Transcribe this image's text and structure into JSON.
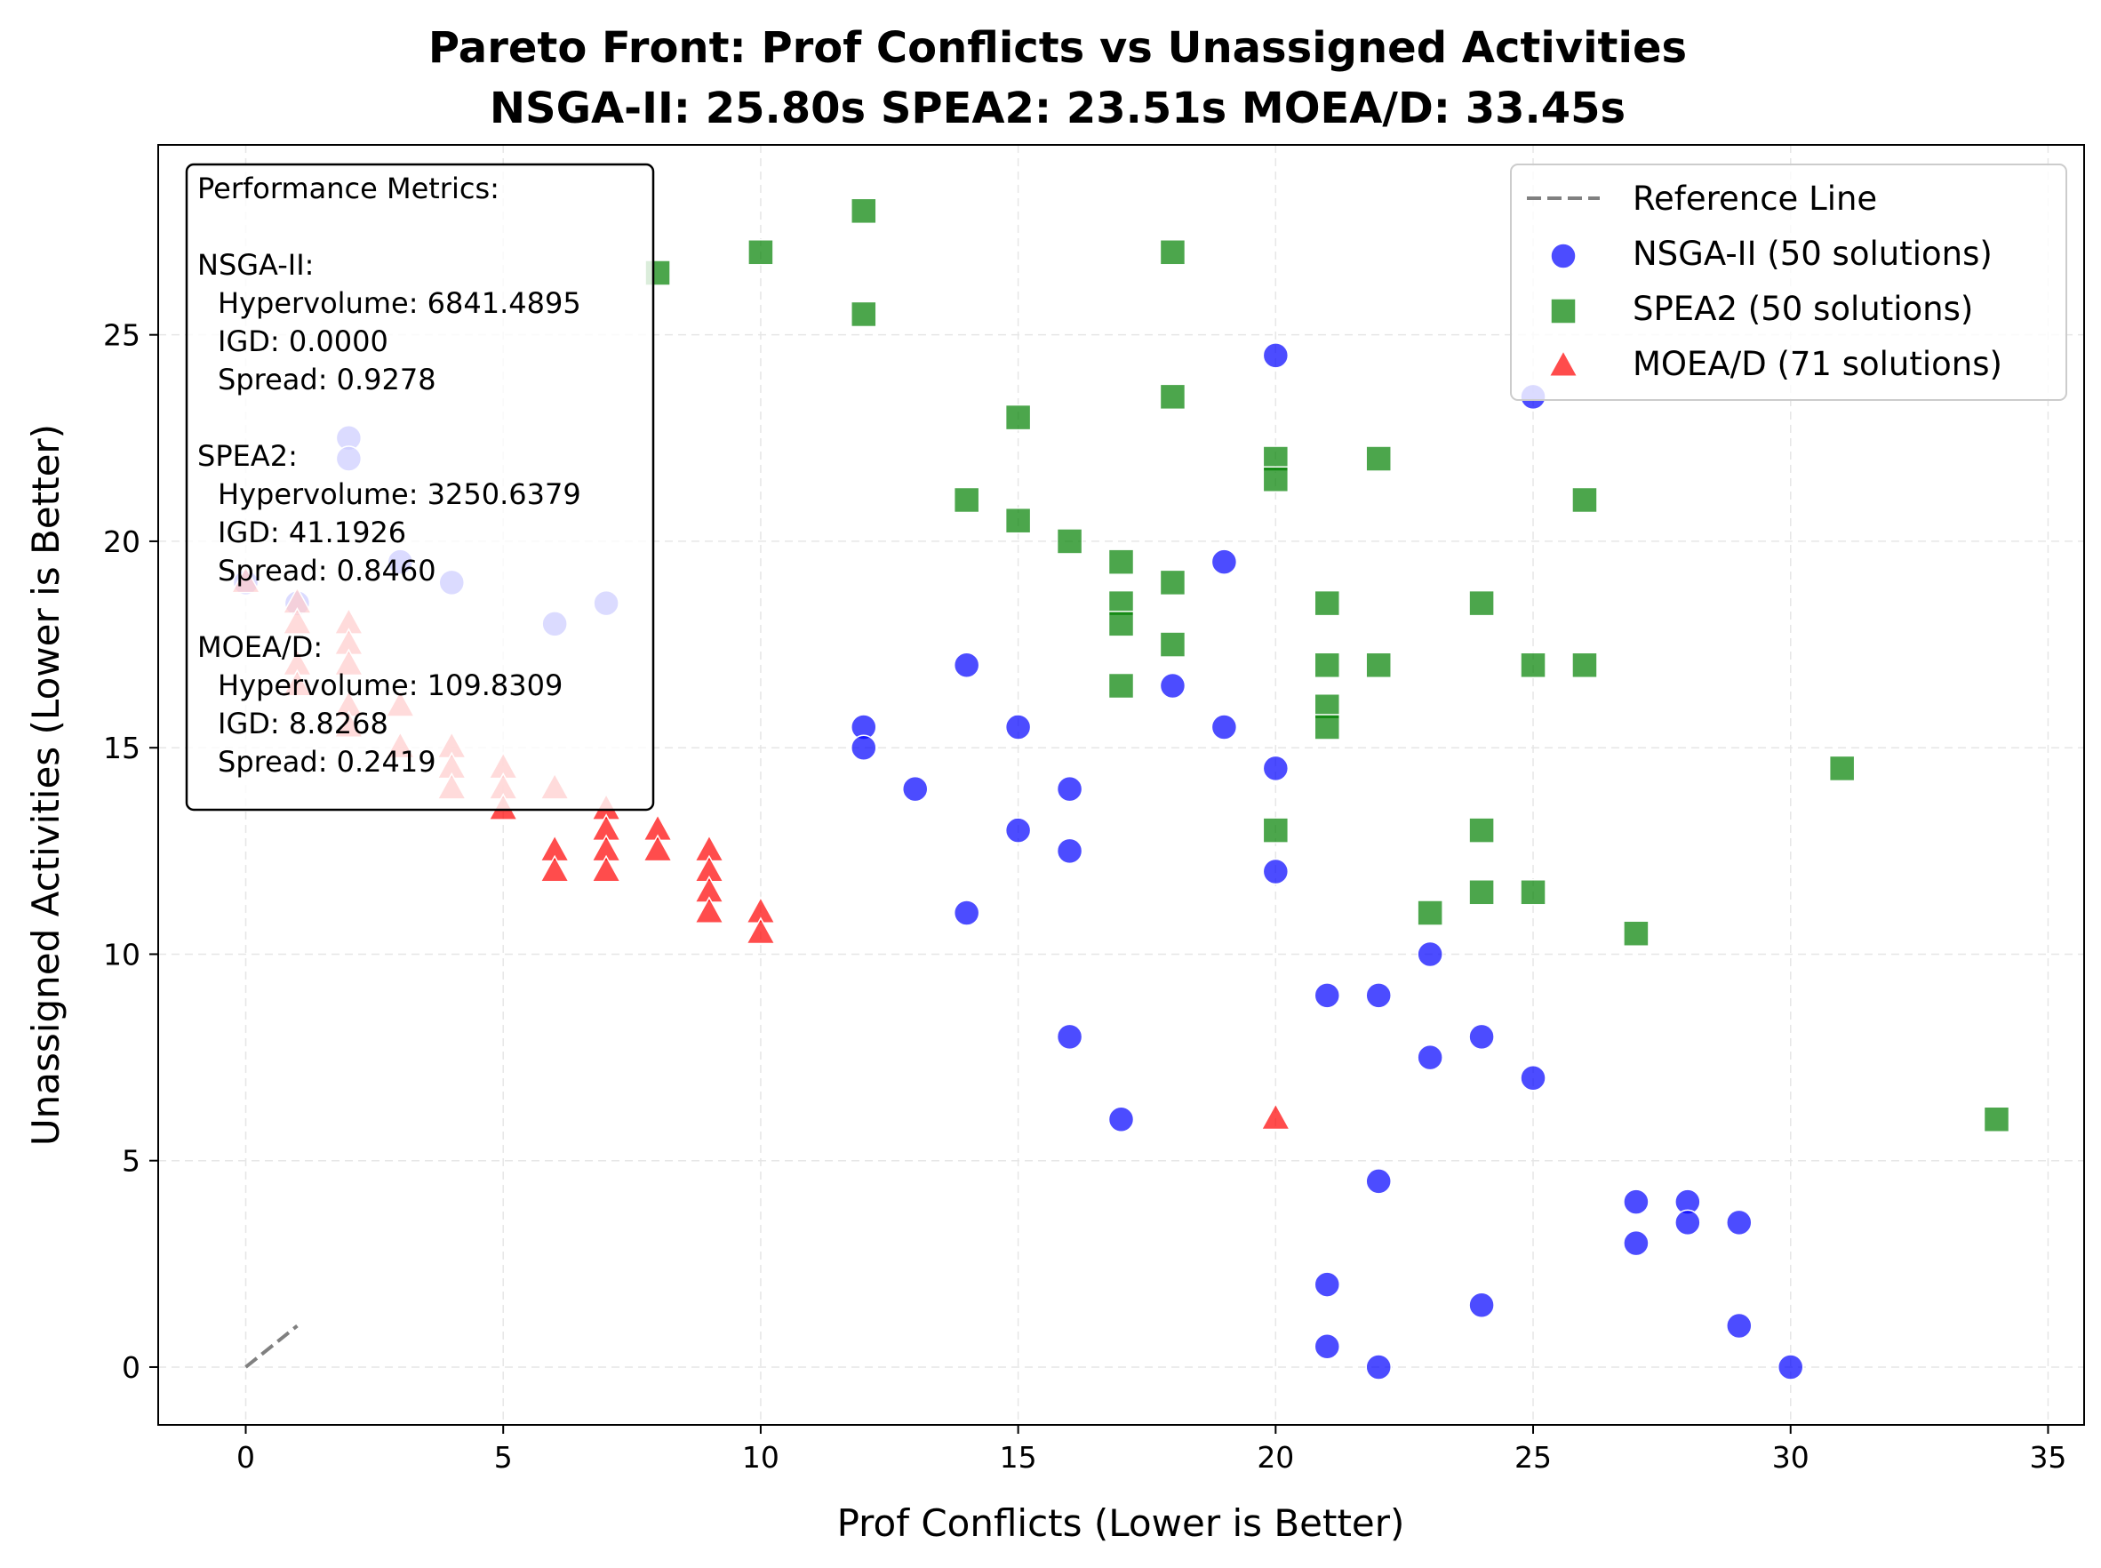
{
  "chart_data": {
    "type": "scatter",
    "title": [
      "Pareto Front: Prof Conflicts vs Unassigned Activities",
      "NSGA-II: 25.80s  SPEA2: 23.51s  MOEA/D: 33.45s"
    ],
    "xlabel": "Prof Conflicts (Lower is Better)",
    "ylabel": "Unassigned Activities (Lower is Better)",
    "xlim": [
      -1.7,
      35.7
    ],
    "ylim": [
      -1.4,
      29.6
    ],
    "xticks": [
      0,
      5,
      10,
      15,
      20,
      25,
      30,
      35
    ],
    "yticks": [
      0,
      5,
      10,
      15,
      20,
      25
    ],
    "grid": true,
    "legend_position": "top-right",
    "reference_line": {
      "name": "Reference Line",
      "x": [
        0,
        1
      ],
      "y": [
        0,
        1
      ],
      "color": "#808080"
    },
    "series": [
      {
        "name": "NSGA-II (50 solutions)",
        "marker": "circle",
        "color": "#0000ff",
        "points": [
          [
            0,
            19
          ],
          [
            1,
            18.5
          ],
          [
            2,
            22.5
          ],
          [
            2,
            22
          ],
          [
            3,
            19.5
          ],
          [
            4,
            19
          ],
          [
            6,
            18
          ],
          [
            7,
            18.5
          ],
          [
            12,
            15.5
          ],
          [
            12,
            15
          ],
          [
            13,
            14
          ],
          [
            14,
            17
          ],
          [
            14,
            11
          ],
          [
            15,
            15.5
          ],
          [
            15,
            13
          ],
          [
            16,
            14
          ],
          [
            16,
            12.5
          ],
          [
            16,
            8
          ],
          [
            17,
            6
          ],
          [
            18,
            16.5
          ],
          [
            19,
            19.5
          ],
          [
            19,
            15.5
          ],
          [
            20,
            24.5
          ],
          [
            20,
            14.5
          ],
          [
            20,
            12
          ],
          [
            21,
            9
          ],
          [
            21,
            2
          ],
          [
            21,
            0.5
          ],
          [
            22,
            9
          ],
          [
            22,
            4.5
          ],
          [
            22,
            0
          ],
          [
            23,
            10
          ],
          [
            23,
            7.5
          ],
          [
            24,
            8
          ],
          [
            24,
            1.5
          ],
          [
            25,
            23.5
          ],
          [
            25,
            7
          ],
          [
            27,
            4
          ],
          [
            27,
            3
          ],
          [
            28,
            4
          ],
          [
            28,
            3.5
          ],
          [
            29,
            3.5
          ],
          [
            29,
            1
          ],
          [
            30,
            0
          ]
        ]
      },
      {
        "name": "SPEA2 (50 solutions)",
        "marker": "square",
        "color": "#008000",
        "points": [
          [
            8,
            26.5
          ],
          [
            10,
            27
          ],
          [
            12,
            28
          ],
          [
            12,
            25.5
          ],
          [
            14,
            21
          ],
          [
            15,
            23
          ],
          [
            15,
            20.5
          ],
          [
            16,
            20
          ],
          [
            17,
            19.5
          ],
          [
            17,
            18.5
          ],
          [
            17,
            18
          ],
          [
            17,
            16.5
          ],
          [
            18,
            27
          ],
          [
            18,
            23.5
          ],
          [
            18,
            19
          ],
          [
            18,
            17.5
          ],
          [
            20,
            22
          ],
          [
            20,
            21.5
          ],
          [
            20,
            13
          ],
          [
            21,
            18.5
          ],
          [
            21,
            17
          ],
          [
            21,
            16
          ],
          [
            21,
            15.5
          ],
          [
            22,
            22
          ],
          [
            22,
            17
          ],
          [
            23,
            11
          ],
          [
            24,
            18.5
          ],
          [
            24,
            13
          ],
          [
            24,
            11.5
          ],
          [
            25,
            17
          ],
          [
            25,
            11.5
          ],
          [
            26,
            21
          ],
          [
            26,
            17
          ],
          [
            27,
            10.5
          ],
          [
            31,
            14.5
          ],
          [
            34,
            6
          ]
        ]
      },
      {
        "name": "MOEA/D (71 solutions)",
        "marker": "triangle",
        "color": "#ff0000",
        "points": [
          [
            0,
            19
          ],
          [
            1,
            18.5
          ],
          [
            1,
            18
          ],
          [
            1,
            17
          ],
          [
            1,
            16.5
          ],
          [
            2,
            18
          ],
          [
            2,
            17.5
          ],
          [
            2,
            17
          ],
          [
            2,
            16
          ],
          [
            2,
            15.5
          ],
          [
            3,
            16
          ],
          [
            3,
            15
          ],
          [
            4,
            15
          ],
          [
            4,
            14.5
          ],
          [
            4,
            14
          ],
          [
            5,
            14.5
          ],
          [
            5,
            14
          ],
          [
            5,
            13.5
          ],
          [
            6,
            14
          ],
          [
            6,
            12.5
          ],
          [
            6,
            12
          ],
          [
            7,
            13.5
          ],
          [
            7,
            13
          ],
          [
            7,
            12.5
          ],
          [
            7,
            12
          ],
          [
            8,
            13
          ],
          [
            8,
            12.5
          ],
          [
            9,
            12.5
          ],
          [
            9,
            12
          ],
          [
            9,
            11.5
          ],
          [
            9,
            11
          ],
          [
            10,
            11
          ],
          [
            10,
            10.5
          ],
          [
            20,
            6
          ]
        ]
      }
    ],
    "metrics_box": {
      "heading": "Performance Metrics:",
      "groups": [
        {
          "name": "NSGA-II:",
          "lines": [
            "Hypervolume: 6841.4895",
            "IGD: 0.0000",
            "Spread: 0.9278"
          ]
        },
        {
          "name": "SPEA2:",
          "lines": [
            "Hypervolume: 3250.6379",
            "IGD: 41.1926",
            "Spread: 0.8460"
          ]
        },
        {
          "name": "MOEA/D:",
          "lines": [
            "Hypervolume: 109.8309",
            "IGD: 8.8268",
            "Spread: 0.2419"
          ]
        }
      ]
    }
  }
}
